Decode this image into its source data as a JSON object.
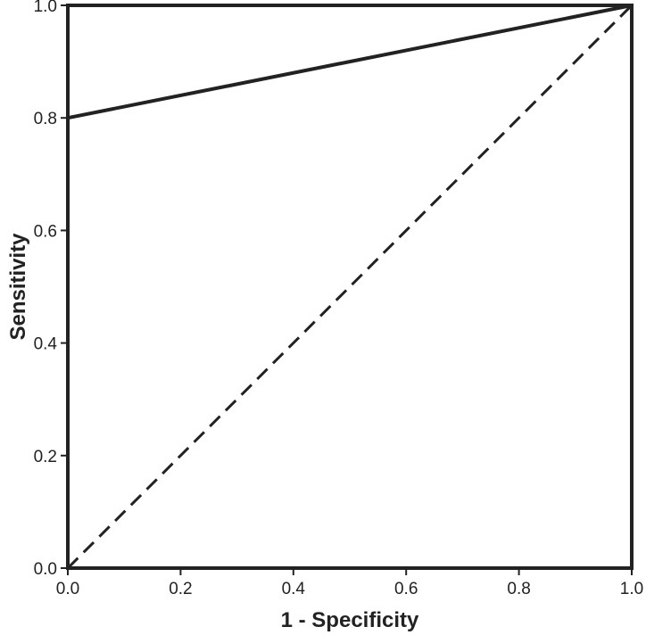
{
  "chart_data": {
    "type": "line",
    "xlabel": "1 - Specificity",
    "ylabel": "Sensitivity",
    "xlim": [
      0,
      1
    ],
    "ylim": [
      0,
      1
    ],
    "x_ticks": [
      "0.0",
      "0.2",
      "0.4",
      "0.6",
      "0.8",
      "1.0"
    ],
    "y_ticks": [
      "0.0",
      "0.2",
      "0.4",
      "0.6",
      "0.8",
      "1.0"
    ],
    "grid": false,
    "legend": "none",
    "series": [
      {
        "style": "solid",
        "color": "#222222",
        "x": [
          0.0,
          0.0,
          1.0
        ],
        "y": [
          0.0,
          0.8,
          1.0
        ]
      },
      {
        "style": "dashed",
        "color": "#222222",
        "x": [
          0.0,
          1.0
        ],
        "y": [
          0.0,
          1.0
        ]
      }
    ]
  }
}
